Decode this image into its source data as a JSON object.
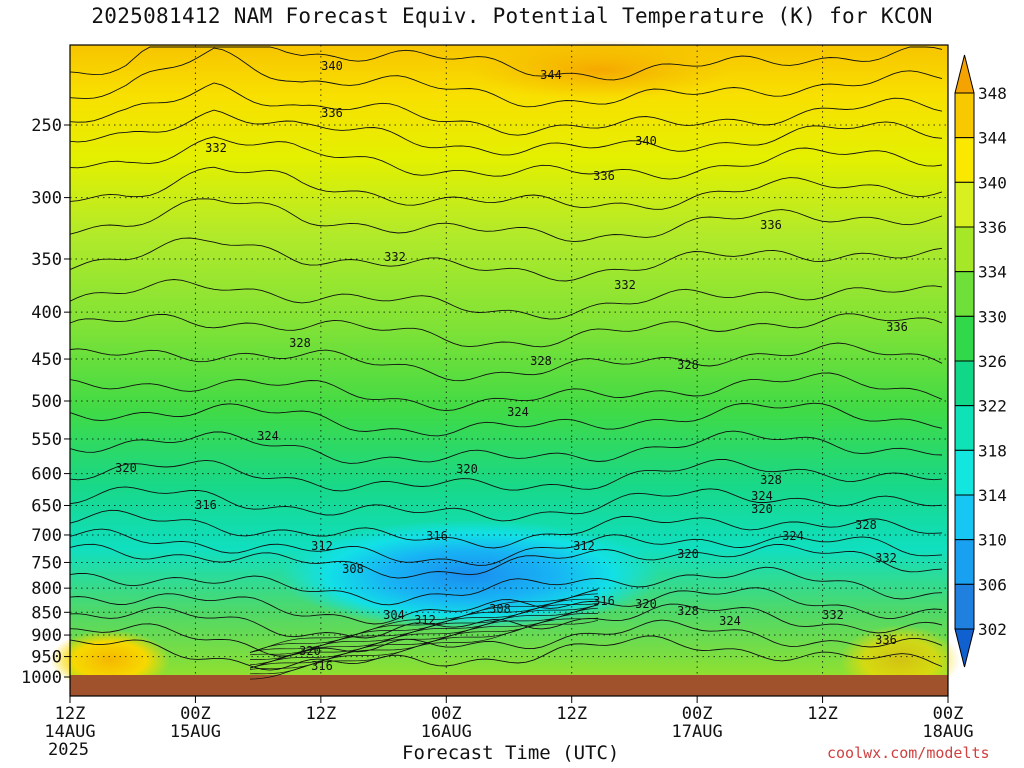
{
  "chart_data": {
    "type": "heatmap",
    "title": "2025081412 NAM Forecast Equiv. Potential Temperature (K) for KCON",
    "xlabel": "Forecast Time (UTC)",
    "ylabel": "",
    "y_axis": {
      "scale": "log-pressure",
      "inverted": true,
      "ticks": [
        "250",
        "300",
        "350",
        "400",
        "450",
        "500",
        "550",
        "600",
        "650",
        "700",
        "750",
        "800",
        "850",
        "900",
        "950",
        "1000"
      ]
    },
    "x_axis": {
      "ticks": [
        {
          "top": "12Z",
          "bottom": "14AUG"
        },
        {
          "top": "00Z",
          "bottom": "15AUG"
        },
        {
          "top": "12Z",
          "bottom": ""
        },
        {
          "top": "00Z",
          "bottom": "16AUG"
        },
        {
          "top": "12Z",
          "bottom": ""
        },
        {
          "top": "00Z",
          "bottom": "17AUG"
        },
        {
          "top": "12Z",
          "bottom": ""
        },
        {
          "top": "00Z",
          "bottom": "18AUG"
        }
      ],
      "year": "2025"
    },
    "grid": true,
    "colorbar": {
      "labels": [
        "348",
        "344",
        "340",
        "336",
        "334",
        "330",
        "326",
        "322",
        "318",
        "314",
        "310",
        "306",
        "302"
      ],
      "colors": [
        "#f5a300",
        "#f8c800",
        "#fae800",
        "#d8ef20",
        "#a6e828",
        "#6fe03a",
        "#30d84a",
        "#10d888",
        "#10e2b8",
        "#12e6de",
        "#18c6f4",
        "#1aa0f0",
        "#2080e0",
        "#1060d0"
      ]
    },
    "contour_labels": [
      "340",
      "344",
      "336",
      "340",
      "336",
      "332",
      "336",
      "332",
      "332",
      "336",
      "328",
      "328",
      "328",
      "324",
      "324",
      "320",
      "320",
      "328",
      "324",
      "320",
      "316",
      "316",
      "312",
      "312",
      "308",
      "308",
      "316",
      "320",
      "304",
      "312",
      "320",
      "328",
      "324",
      "324",
      "328",
      "332",
      "332",
      "336",
      "320",
      "316"
    ]
  },
  "credit": "coolwx.com/modelts"
}
